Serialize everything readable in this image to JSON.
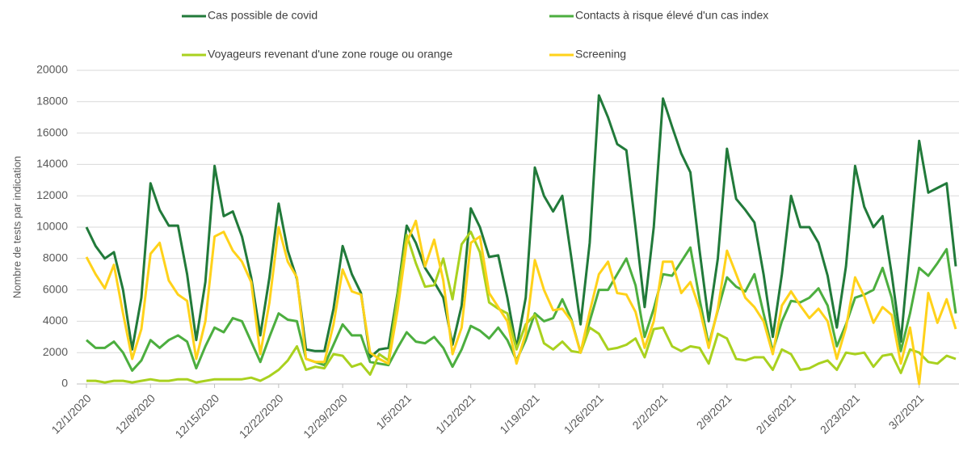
{
  "chart_data": {
    "type": "line",
    "y_label": "Nombre de tests par indication",
    "categories": [
      "12/1/2020",
      null,
      null,
      null,
      null,
      null,
      null,
      "12/8/2020",
      null,
      null,
      null,
      null,
      null,
      null,
      "12/15/2020",
      null,
      null,
      null,
      null,
      null,
      null,
      "12/22/2020",
      null,
      null,
      null,
      null,
      null,
      null,
      "12/29/2020",
      null,
      null,
      null,
      null,
      null,
      null,
      "1/5/2021",
      null,
      null,
      null,
      null,
      null,
      null,
      "1/12/2021",
      null,
      null,
      null,
      null,
      null,
      null,
      "1/19/2021",
      null,
      null,
      null,
      null,
      null,
      null,
      "1/26/2021",
      null,
      null,
      null,
      null,
      null,
      null,
      "2/2/2021",
      null,
      null,
      null,
      null,
      null,
      null,
      "2/9/2021",
      null,
      null,
      null,
      null,
      null,
      null,
      "2/16/2021",
      null,
      null,
      null,
      null,
      null,
      null,
      "2/23/2021",
      null,
      null,
      null,
      null,
      null,
      null,
      "3/2/2021",
      null,
      null,
      null,
      null
    ],
    "ylim": [
      0,
      20000
    ],
    "yticks": [
      0,
      2000,
      4000,
      6000,
      8000,
      10000,
      12000,
      14000,
      16000,
      18000,
      20000
    ],
    "grid": true,
    "series": [
      {
        "name": "Cas possible de covid",
        "color": "#217a3a",
        "values": [
          10000,
          8800,
          8000,
          8400,
          6000,
          2200,
          5500,
          12800,
          11100,
          10100,
          10100,
          7000,
          2800,
          6500,
          13900,
          10700,
          11000,
          9400,
          6800,
          3100,
          6800,
          11500,
          8500,
          6700,
          2200,
          2100,
          2100,
          4800,
          8800,
          7000,
          5800,
          1700,
          2200,
          2300,
          5800,
          10100,
          9000,
          7400,
          6500,
          5500,
          2500,
          5000,
          11200,
          10000,
          8100,
          8200,
          5500,
          2300,
          5500,
          13800,
          12000,
          11000,
          12000,
          8000,
          3800,
          9000,
          18400,
          17000,
          15300,
          14900,
          10000,
          4900,
          10000,
          18200,
          16400,
          14700,
          13500,
          8500,
          4000,
          8000,
          15000,
          11800,
          11100,
          10300,
          7000,
          3000,
          7000,
          12000,
          10000,
          10000,
          9000,
          6900,
          3600,
          7500,
          13900,
          11300,
          10000,
          10700,
          7000,
          2700,
          9000,
          15500,
          12200,
          12500,
          12800,
          7500
        ]
      },
      {
        "name": "Contacts à risque élevé d'un cas index",
        "color": "#4cae3f",
        "values": [
          2800,
          2300,
          2300,
          2700,
          2000,
          850,
          1500,
          2800,
          2300,
          2800,
          3100,
          2700,
          1000,
          2400,
          3600,
          3300,
          4200,
          4000,
          2700,
          1400,
          3000,
          4500,
          4100,
          4000,
          1600,
          1400,
          1200,
          2500,
          3800,
          3100,
          3100,
          1400,
          1300,
          1200,
          2300,
          3300,
          2700,
          2600,
          3000,
          2300,
          1100,
          2200,
          3700,
          3400,
          2900,
          3600,
          2800,
          1500,
          2800,
          4500,
          4000,
          4200,
          5400,
          4100,
          2000,
          4000,
          6000,
          6000,
          7000,
          8000,
          6300,
          3000,
          4800,
          7000,
          6900,
          7800,
          8700,
          5400,
          2500,
          4700,
          6800,
          6200,
          5900,
          7000,
          4500,
          2100,
          4000,
          5300,
          5200,
          5500,
          6100,
          5000,
          2400,
          3800,
          5500,
          5700,
          6000,
          7400,
          5500,
          2100,
          4500,
          7400,
          6900,
          7700,
          8600,
          4500
        ]
      },
      {
        "name": "Voyageurs revenant d'une zone rouge ou orange",
        "color": "#a9d11f",
        "values": [
          200,
          200,
          100,
          200,
          200,
          100,
          200,
          300,
          200,
          200,
          300,
          300,
          100,
          200,
          300,
          300,
          300,
          300,
          400,
          200,
          500,
          900,
          1500,
          2400,
          900,
          1100,
          1000,
          1900,
          1800,
          1100,
          1300,
          600,
          1900,
          1500,
          5600,
          9500,
          7700,
          6200,
          6300,
          8000,
          5400,
          8900,
          9700,
          8400,
          5200,
          4800,
          4500,
          2200,
          3800,
          4400,
          2600,
          2200,
          2700,
          2100,
          2000,
          3600,
          3200,
          2200,
          2300,
          2500,
          2900,
          1700,
          3500,
          3600,
          2400,
          2100,
          2400,
          2300,
          1300,
          3200,
          2900,
          1600,
          1500,
          1700,
          1700,
          900,
          2200,
          1900,
          900,
          1000,
          1300,
          1500,
          900,
          2000,
          1900,
          2000,
          1100,
          1800,
          1900,
          700,
          2200,
          2000,
          1400,
          1300,
          1800,
          1600
        ]
      },
      {
        "name": "Screening",
        "color": "#ffd21a",
        "values": [
          8100,
          7000,
          6100,
          7600,
          4500,
          1600,
          3500,
          8300,
          9000,
          6600,
          5700,
          5300,
          1600,
          4000,
          9400,
          9700,
          8500,
          7800,
          6500,
          1900,
          5200,
          10000,
          7800,
          6800,
          1600,
          1400,
          1400,
          3800,
          7300,
          5900,
          5700,
          2000,
          1600,
          1300,
          4700,
          9000,
          10400,
          7500,
          9200,
          6600,
          1900,
          3600,
          9000,
          9400,
          5800,
          4900,
          4000,
          1300,
          3200,
          7900,
          6000,
          4700,
          4800,
          4000,
          2000,
          4600,
          7000,
          7800,
          5800,
          5700,
          4600,
          2300,
          4000,
          7800,
          7800,
          5800,
          6500,
          4800,
          2300,
          4800,
          8500,
          7000,
          5500,
          4900,
          4000,
          1900,
          5000,
          5900,
          5000,
          4200,
          4800,
          4000,
          1600,
          3600,
          6800,
          5600,
          3900,
          4900,
          4400,
          1300,
          3600,
          0,
          5800,
          3900,
          5400,
          3500
        ]
      }
    ]
  }
}
